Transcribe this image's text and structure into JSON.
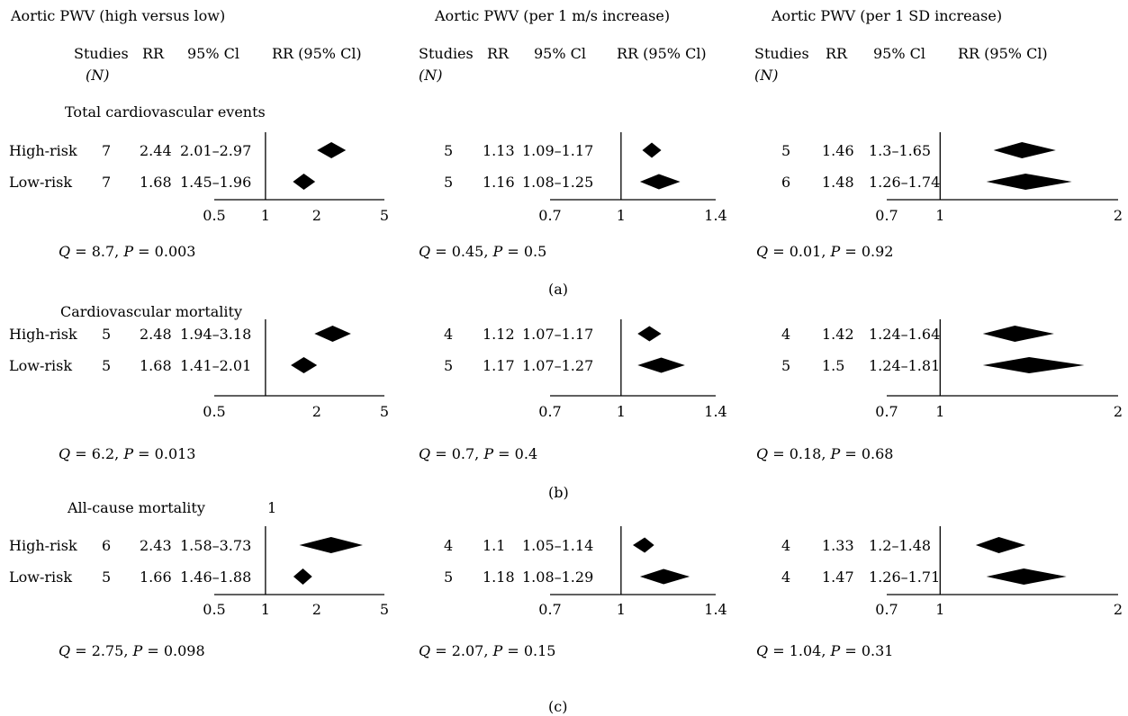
{
  "headers": {
    "titles": [
      "Aortic PWV (high versus low)",
      "Aortic PWV (per 1 m/s increase)",
      "Aortic PWV (per 1 SD increase)"
    ],
    "columns": [
      "Studies",
      "RR",
      "95% Cl",
      "RR (95% Cl)"
    ],
    "n_label": "(N)"
  },
  "sections": [
    {
      "heading": "Total cardiovascular events",
      "letter": "(a)"
    },
    {
      "heading": "Cardiovascular mortality",
      "letter": "(b)"
    },
    {
      "heading": "All-cause mortality",
      "letter": "(c)",
      "stray_label": "1"
    }
  ],
  "row_labels": [
    "High-risk",
    "Low-risk"
  ],
  "chart_data": [
    {
      "type": "forest",
      "section": "Total cardiovascular events",
      "panel": "Aortic PWV (high versus low)",
      "ticks": [
        {
          "v": 0.5,
          "t": "0.5"
        },
        {
          "v": 1,
          "t": "1"
        },
        {
          "v": 2,
          "t": "2"
        },
        {
          "v": 5,
          "t": "5"
        }
      ],
      "rows": [
        {
          "label": "High-risk",
          "n": "7",
          "rr": "2.44",
          "ci": "2.01–2.97",
          "est": 2.44,
          "lo": 2.01,
          "hi": 2.97
        },
        {
          "label": "Low-risk",
          "n": "7",
          "rr": "1.68",
          "ci": "1.45–1.96",
          "est": 1.68,
          "lo": 1.45,
          "hi": 1.96
        }
      ],
      "stat": {
        "q": "8.7",
        "p": "0.003"
      }
    },
    {
      "type": "forest",
      "section": "Total cardiovascular events",
      "panel": "Aortic PWV (per 1 m/s increase)",
      "ticks": [
        {
          "v": 0.7,
          "t": "0.7"
        },
        {
          "v": 1,
          "t": "1"
        },
        {
          "v": 1.4,
          "t": "1.4"
        }
      ],
      "rows": [
        {
          "n": "5",
          "rr": "1.13",
          "ci": "1.09–1.17",
          "est": 1.13,
          "lo": 1.09,
          "hi": 1.17
        },
        {
          "n": "5",
          "rr": "1.16",
          "ci": "1.08–1.25",
          "est": 1.16,
          "lo": 1.08,
          "hi": 1.25
        }
      ],
      "stat": {
        "q": "0.45",
        "p": "0.5"
      }
    },
    {
      "type": "forest",
      "section": "Total cardiovascular events",
      "panel": "Aortic PWV (per 1 SD increase)",
      "ticks": [
        {
          "v": 0.7,
          "t": "0.7"
        },
        {
          "v": 1,
          "t": "1"
        },
        {
          "v": 2,
          "t": "2"
        }
      ],
      "rows": [
        {
          "n": "5",
          "rr": "1.46",
          "ci": "1.3–1.65",
          "est": 1.46,
          "lo": 1.3,
          "hi": 1.65
        },
        {
          "n": "6",
          "rr": "1.48",
          "ci": "1.26–1.74",
          "est": 1.48,
          "lo": 1.26,
          "hi": 1.74
        }
      ],
      "stat": {
        "q": "0.01",
        "p": "0.92"
      }
    },
    {
      "type": "forest",
      "section": "Cardiovascular mortality",
      "panel": "Aortic PWV (high versus low)",
      "ticks": [
        {
          "v": 0.5,
          "t": "0.5"
        },
        {
          "v": 2,
          "t": "2"
        },
        {
          "v": 5,
          "t": "5"
        }
      ],
      "rows": [
        {
          "label": "High-risk",
          "n": "5",
          "rr": "2.48",
          "ci": "1.94–3.18",
          "est": 2.48,
          "lo": 1.94,
          "hi": 3.18
        },
        {
          "label": "Low-risk",
          "n": "5",
          "rr": "1.68",
          "ci": "1.41–2.01",
          "est": 1.68,
          "lo": 1.41,
          "hi": 2.01
        }
      ],
      "stat": {
        "q": "6.2",
        "p": "0.013"
      }
    },
    {
      "type": "forest",
      "section": "Cardiovascular mortality",
      "panel": "Aortic PWV (per 1 m/s increase)",
      "ticks": [
        {
          "v": 0.7,
          "t": "0.7"
        },
        {
          "v": 1,
          "t": "1"
        },
        {
          "v": 1.4,
          "t": "1.4"
        }
      ],
      "rows": [
        {
          "n": "4",
          "rr": "1.12",
          "ci": "1.07–1.17",
          "est": 1.12,
          "lo": 1.07,
          "hi": 1.17
        },
        {
          "n": "5",
          "rr": "1.17",
          "ci": "1.07–1.27",
          "est": 1.17,
          "lo": 1.07,
          "hi": 1.27
        }
      ],
      "stat": {
        "q": "0.7",
        "p": "0.4"
      }
    },
    {
      "type": "forest",
      "section": "Cardiovascular mortality",
      "panel": "Aortic PWV (per 1 SD increase)",
      "ticks": [
        {
          "v": 0.7,
          "t": "0.7"
        },
        {
          "v": 1,
          "t": "1"
        },
        {
          "v": 2,
          "t": "2"
        }
      ],
      "rows": [
        {
          "n": "4",
          "rr": "1.42",
          "ci": "1.24–1.64",
          "est": 1.42,
          "lo": 1.24,
          "hi": 1.64
        },
        {
          "n": "5",
          "rr": "1.5",
          "ci": "1.24–1.81",
          "est": 1.5,
          "lo": 1.24,
          "hi": 1.81
        }
      ],
      "stat": {
        "q": "0.18",
        "p": "0.68"
      }
    },
    {
      "type": "forest",
      "section": "All-cause mortality",
      "panel": "Aortic PWV (high versus low)",
      "ticks": [
        {
          "v": 0.5,
          "t": "0.5"
        },
        {
          "v": 1,
          "t": "1"
        },
        {
          "v": 2,
          "t": "2"
        },
        {
          "v": 5,
          "t": "5"
        }
      ],
      "rows": [
        {
          "label": "High-risk",
          "n": "6",
          "rr": "2.43",
          "ci": "1.58–3.73",
          "est": 2.43,
          "lo": 1.58,
          "hi": 3.73
        },
        {
          "label": "Low-risk",
          "n": "5",
          "rr": "1.66",
          "ci": "1.46–1.88",
          "est": 1.66,
          "lo": 1.46,
          "hi": 1.88
        }
      ],
      "stat": {
        "q": "2.75",
        "p": "0.098"
      }
    },
    {
      "type": "forest",
      "section": "All-cause mortality",
      "panel": "Aortic PWV (per 1 m/s increase)",
      "ticks": [
        {
          "v": 0.7,
          "t": "0.7"
        },
        {
          "v": 1,
          "t": "1"
        },
        {
          "v": 1.4,
          "t": "1.4"
        }
      ],
      "rows": [
        {
          "n": "4",
          "rr": "1.1",
          "ci": "1.05–1.14",
          "est": 1.1,
          "lo": 1.05,
          "hi": 1.14
        },
        {
          "n": "5",
          "rr": "1.18",
          "ci": "1.08–1.29",
          "est": 1.18,
          "lo": 1.08,
          "hi": 1.29
        }
      ],
      "stat": {
        "q": "2.07",
        "p": "0.15"
      }
    },
    {
      "type": "forest",
      "section": "All-cause mortality",
      "panel": "Aortic PWV (per 1 SD increase)",
      "ticks": [
        {
          "v": 0.7,
          "t": "0.7"
        },
        {
          "v": 1,
          "t": "1"
        },
        {
          "v": 2,
          "t": "2"
        }
      ],
      "rows": [
        {
          "n": "4",
          "rr": "1.33",
          "ci": "1.2–1.48",
          "est": 1.33,
          "lo": 1.2,
          "hi": 1.48
        },
        {
          "n": "4",
          "rr": "1.47",
          "ci": "1.26–1.71",
          "est": 1.47,
          "lo": 1.26,
          "hi": 1.71
        }
      ],
      "stat": {
        "q": "1.04",
        "p": "0.31"
      }
    }
  ]
}
